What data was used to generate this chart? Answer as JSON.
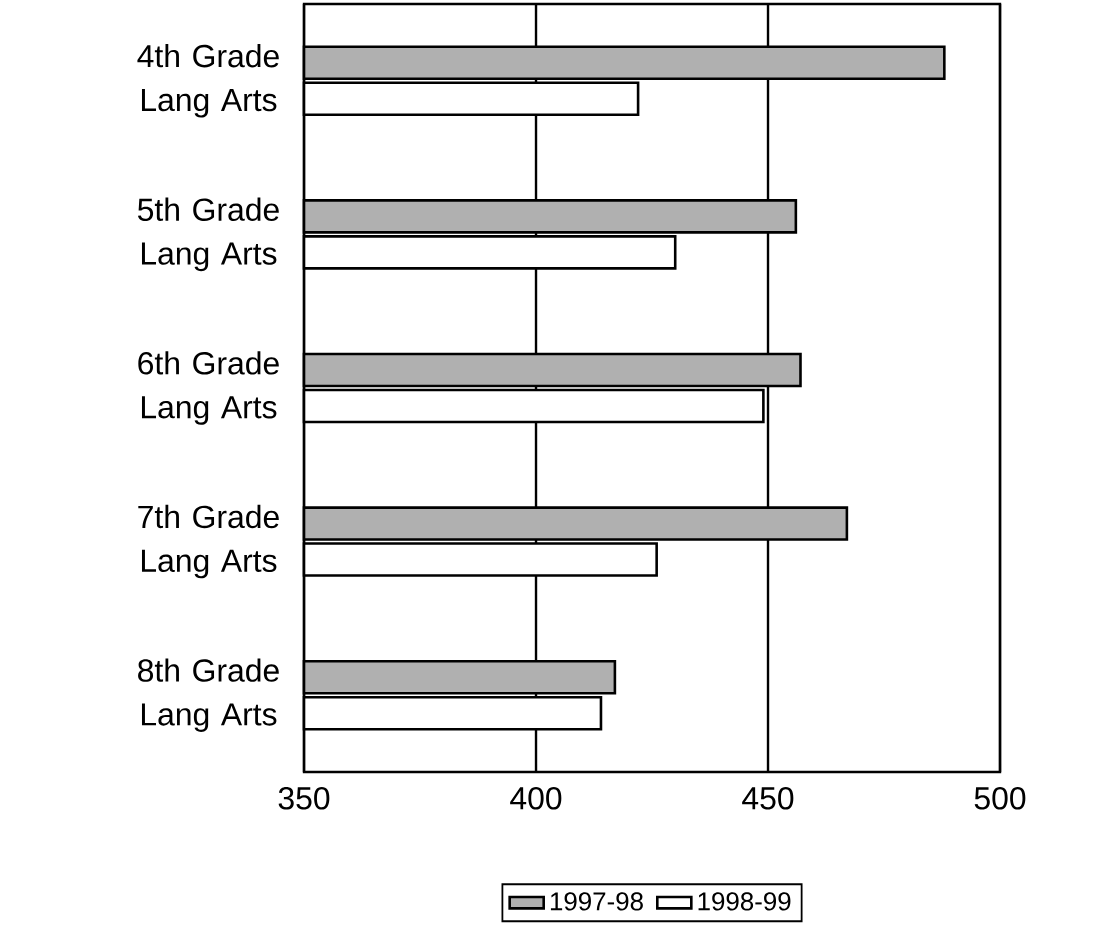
{
  "chart_data": {
    "type": "bar",
    "orientation": "horizontal",
    "categories": [
      "4th Grade Lang Arts",
      "5th Grade Lang Arts",
      "6th Grade Lang Arts",
      "7th Grade Lang Arts",
      "8th Grade Lang Arts"
    ],
    "series": [
      {
        "name": "1997-98",
        "color": "#b0b0b0",
        "values": [
          488,
          456,
          457,
          467,
          417
        ]
      },
      {
        "name": "1998-99",
        "color": "#ffffff",
        "values": [
          422,
          430,
          449,
          426,
          414
        ]
      }
    ],
    "xlim": [
      350,
      500
    ],
    "xticks": [
      350,
      400,
      450,
      500
    ],
    "grid": "x",
    "legend": "bottom"
  }
}
